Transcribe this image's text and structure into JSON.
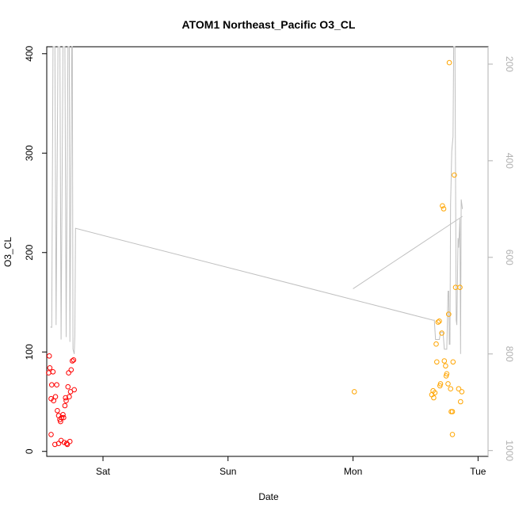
{
  "chart_data": {
    "type": "scatter",
    "title": "ATOM1 Northeast_Pacific O3_CL",
    "xlabel": "Date",
    "ylabel": "O3_CL",
    "x_unit": "days since start of Fri",
    "xlim": [
      0.55,
      4.08
    ],
    "ylim": [
      -5,
      407
    ],
    "x_ticks": [
      {
        "value": 1.0,
        "label": "Sat"
      },
      {
        "value": 2.0,
        "label": "Sun"
      },
      {
        "value": 3.0,
        "label": "Mon"
      },
      {
        "value": 4.0,
        "label": "Tue"
      }
    ],
    "y_ticks": [
      0,
      100,
      200,
      300,
      400
    ],
    "y2_ticks": [
      200,
      400,
      600,
      800,
      1000
    ],
    "y2lim": [
      1012,
      164
    ],
    "colors": {
      "series1": "#ff0000",
      "series2": "#ffa500",
      "pressure_line": "#c0c0c0",
      "axis": "#000000",
      "y2_axis": "#b0b0b0"
    },
    "series": [
      {
        "color": "#ff0000",
        "points": [
          {
            "x": 0.57,
            "y": 96
          },
          {
            "x": 0.565,
            "y": 79
          },
          {
            "x": 0.575,
            "y": 84
          },
          {
            "x": 0.59,
            "y": 67
          },
          {
            "x": 0.6,
            "y": 80
          },
          {
            "x": 0.585,
            "y": 53
          },
          {
            "x": 0.585,
            "y": 17
          },
          {
            "x": 0.605,
            "y": 51
          },
          {
            "x": 0.615,
            "y": 7
          },
          {
            "x": 0.62,
            "y": 55
          },
          {
            "x": 0.63,
            "y": 67
          },
          {
            "x": 0.635,
            "y": 41
          },
          {
            "x": 0.645,
            "y": 8
          },
          {
            "x": 0.645,
            "y": 36
          },
          {
            "x": 0.655,
            "y": 32
          },
          {
            "x": 0.66,
            "y": 30
          },
          {
            "x": 0.665,
            "y": 11
          },
          {
            "x": 0.67,
            "y": 34
          },
          {
            "x": 0.68,
            "y": 37
          },
          {
            "x": 0.685,
            "y": 34
          },
          {
            "x": 0.69,
            "y": 9
          },
          {
            "x": 0.695,
            "y": 46
          },
          {
            "x": 0.7,
            "y": 54
          },
          {
            "x": 0.705,
            "y": 51
          },
          {
            "x": 0.71,
            "y": 8
          },
          {
            "x": 0.715,
            "y": 7
          },
          {
            "x": 0.72,
            "y": 65
          },
          {
            "x": 0.725,
            "y": 79
          },
          {
            "x": 0.73,
            "y": 55
          },
          {
            "x": 0.735,
            "y": 10
          },
          {
            "x": 0.74,
            "y": 60
          },
          {
            "x": 0.745,
            "y": 82
          },
          {
            "x": 0.755,
            "y": 91
          },
          {
            "x": 0.765,
            "y": 92
          },
          {
            "x": 0.77,
            "y": 62
          }
        ]
      },
      {
        "color": "#ffa500",
        "points": [
          {
            "x": 3.01,
            "y": 60
          },
          {
            "x": 3.63,
            "y": 57
          },
          {
            "x": 3.64,
            "y": 61
          },
          {
            "x": 3.645,
            "y": 54
          },
          {
            "x": 3.655,
            "y": 59
          },
          {
            "x": 3.665,
            "y": 108
          },
          {
            "x": 3.67,
            "y": 90
          },
          {
            "x": 3.68,
            "y": 130
          },
          {
            "x": 3.69,
            "y": 131
          },
          {
            "x": 3.695,
            "y": 66
          },
          {
            "x": 3.7,
            "y": 68
          },
          {
            "x": 3.71,
            "y": 119
          },
          {
            "x": 3.715,
            "y": 247
          },
          {
            "x": 3.725,
            "y": 244
          },
          {
            "x": 3.73,
            "y": 91
          },
          {
            "x": 3.74,
            "y": 86
          },
          {
            "x": 3.745,
            "y": 76
          },
          {
            "x": 3.75,
            "y": 78
          },
          {
            "x": 3.76,
            "y": 68
          },
          {
            "x": 3.765,
            "y": 138
          },
          {
            "x": 3.77,
            "y": 391
          },
          {
            "x": 3.78,
            "y": 63
          },
          {
            "x": 3.785,
            "y": 40
          },
          {
            "x": 3.795,
            "y": 40
          },
          {
            "x": 3.795,
            "y": 17
          },
          {
            "x": 3.8,
            "y": 90
          },
          {
            "x": 3.81,
            "y": 278
          },
          {
            "x": 3.82,
            "y": 165
          },
          {
            "x": 3.845,
            "y": 63
          },
          {
            "x": 3.855,
            "y": 165
          },
          {
            "x": 3.86,
            "y": 50
          },
          {
            "x": 3.87,
            "y": 60
          }
        ]
      }
    ],
    "pressure_line": [
      {
        "x": 0.58,
        "y": 744
      },
      {
        "x": 0.59,
        "y": 745
      },
      {
        "x": 0.6,
        "y": 164
      },
      {
        "x": 0.615,
        "y": 164
      },
      {
        "x": 0.625,
        "y": 740
      },
      {
        "x": 0.64,
        "y": 164
      },
      {
        "x": 0.655,
        "y": 164
      },
      {
        "x": 0.665,
        "y": 770
      },
      {
        "x": 0.68,
        "y": 164
      },
      {
        "x": 0.695,
        "y": 164
      },
      {
        "x": 0.705,
        "y": 765
      },
      {
        "x": 0.72,
        "y": 164
      },
      {
        "x": 0.73,
        "y": 164
      },
      {
        "x": 0.735,
        "y": 775
      },
      {
        "x": 0.75,
        "y": 164
      },
      {
        "x": 0.755,
        "y": 164
      },
      {
        "x": 0.76,
        "y": 790
      },
      {
        "x": 0.77,
        "y": 800
      },
      {
        "x": 0.775,
        "y": 760
      },
      {
        "x": 0.78,
        "y": 540
      },
      {
        "x": 3.64,
        "y": 730
      },
      {
        "x": 3.65,
        "y": 730
      },
      {
        "x": 3.66,
        "y": 770
      },
      {
        "x": 3.69,
        "y": 770
      },
      {
        "x": 3.7,
        "y": 755
      },
      {
        "x": 3.72,
        "y": 755
      },
      {
        "x": 3.73,
        "y": 790
      },
      {
        "x": 3.75,
        "y": 790
      },
      {
        "x": 3.76,
        "y": 670
      },
      {
        "x": 3.765,
        "y": 670
      },
      {
        "x": 3.77,
        "y": 780
      },
      {
        "x": 3.775,
        "y": 780
      },
      {
        "x": 3.78,
        "y": 490
      },
      {
        "x": 3.79,
        "y": 380
      },
      {
        "x": 3.8,
        "y": 350
      },
      {
        "x": 3.805,
        "y": 164
      },
      {
        "x": 3.815,
        "y": 164
      },
      {
        "x": 3.825,
        "y": 730
      },
      {
        "x": 3.83,
        "y": 740
      },
      {
        "x": 3.84,
        "y": 560
      },
      {
        "x": 3.845,
        "y": 580
      },
      {
        "x": 3.855,
        "y": 520
      },
      {
        "x": 3.86,
        "y": 800
      },
      {
        "x": 3.865,
        "y": 480
      },
      {
        "x": 3.875,
        "y": 500
      }
    ],
    "pressure_line_2": [
      {
        "x": 3.0,
        "y": 665
      },
      {
        "x": 3.875,
        "y": 515
      }
    ]
  }
}
